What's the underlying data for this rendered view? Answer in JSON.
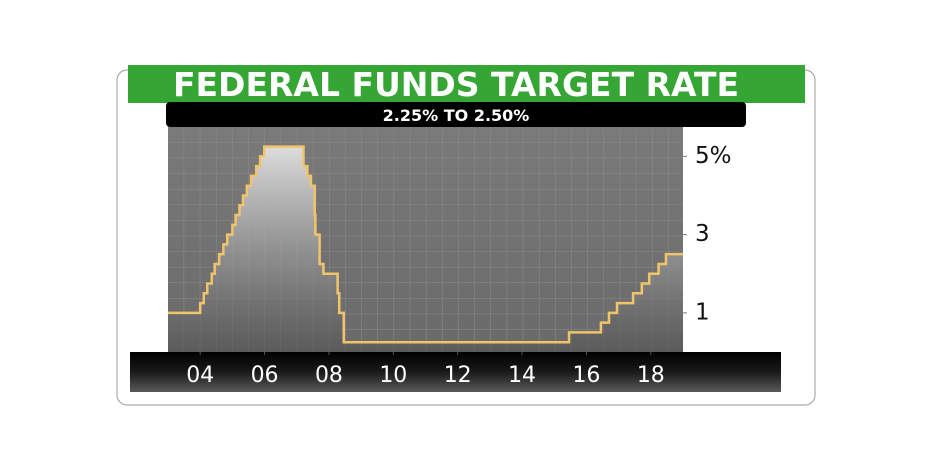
{
  "chart_data": {
    "type": "line",
    "title": "FEDERAL FUNDS TARGET RATE",
    "subtitle": "2.25% TO 2.50%",
    "drawstyle": "steps-post",
    "x": [
      2003.5,
      2004.5,
      2004.61,
      2004.72,
      2004.86,
      2004.95,
      2005.09,
      2005.22,
      2005.34,
      2005.5,
      2005.6,
      2005.72,
      2005.83,
      2005.95,
      2006.08,
      2006.24,
      2006.36,
      2006.49,
      2007.71,
      2007.83,
      2007.94,
      2008.06,
      2008.08,
      2008.21,
      2008.33,
      2008.77,
      2008.82,
      2008.96,
      2015.96,
      2016.95,
      2017.2,
      2017.45,
      2017.95,
      2018.22,
      2018.45,
      2018.74,
      2018.97,
      2019.5
    ],
    "series": [
      {
        "color": "#f2c46a",
        "values": [
          1.0,
          1.25,
          1.5,
          1.75,
          2.0,
          2.25,
          2.5,
          2.75,
          3.0,
          3.25,
          3.5,
          3.75,
          4.0,
          4.25,
          4.5,
          4.75,
          5.0,
          5.25,
          4.75,
          4.5,
          4.25,
          3.5,
          3.0,
          2.25,
          2.0,
          1.5,
          1.0,
          0.25,
          0.5,
          0.75,
          1.0,
          1.25,
          1.5,
          1.75,
          2.0,
          2.25,
          2.5,
          2.5
        ]
      }
    ],
    "xlim": [
      2003.5,
      2019.5
    ],
    "xticks": [
      {
        "value": 2004.5,
        "label": "04"
      },
      {
        "value": 2006.5,
        "label": "06"
      },
      {
        "value": 2008.5,
        "label": "08"
      },
      {
        "value": 2010.5,
        "label": "10"
      },
      {
        "value": 2012.5,
        "label": "12"
      },
      {
        "value": 2014.5,
        "label": "14"
      },
      {
        "value": 2016.5,
        "label": "16"
      },
      {
        "value": 2018.5,
        "label": "18"
      }
    ],
    "ylim": [
      0,
      5.75
    ],
    "yticks": [
      1,
      3,
      {
        "value": 5,
        "label": "5%"
      }
    ]
  }
}
